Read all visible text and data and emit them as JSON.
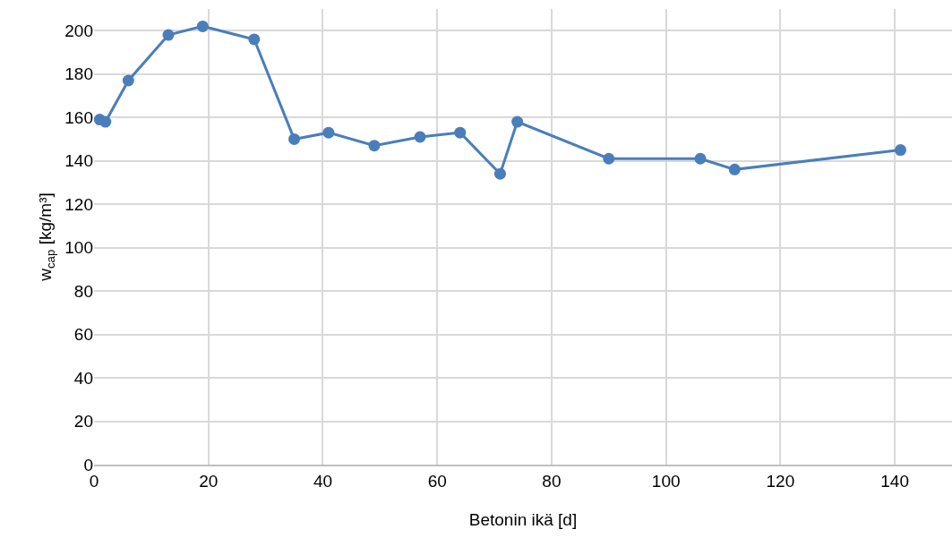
{
  "chart_data": {
    "type": "line",
    "xlabel": "Betonin ikä [d]",
    "ylabel": "w$_{cap}$ [kg/m³]",
    "x": [
      1,
      2,
      6,
      13,
      19,
      28,
      35,
      41,
      49,
      57,
      64,
      71,
      74,
      90,
      106,
      112,
      141
    ],
    "series": [
      {
        "color": "#4a7ebb",
        "values": [
          159,
          158,
          177,
          198,
          202,
          196,
          150,
          153,
          147,
          151,
          153,
          134,
          158,
          141,
          141,
          136,
          145
        ]
      }
    ],
    "xlim": [
      0,
      150
    ],
    "xticks": [
      0,
      20,
      40,
      60,
      80,
      100,
      120,
      140
    ],
    "ylim": [
      0,
      210
    ],
    "yticks": [
      0,
      20,
      40,
      60,
      80,
      100,
      120,
      140,
      160,
      180,
      200
    ],
    "grid": true,
    "marker": "circle",
    "line_style": "solid"
  }
}
